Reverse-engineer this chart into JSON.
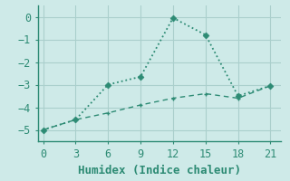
{
  "line1_x": [
    0,
    3,
    6,
    9,
    12,
    15,
    18,
    21
  ],
  "line1_y": [
    -5.0,
    -4.55,
    -3.0,
    -2.65,
    -0.05,
    -0.8,
    -3.5,
    -3.05
  ],
  "line2_x": [
    0,
    3,
    6,
    9,
    12,
    15,
    18,
    21
  ],
  "line2_y": [
    -5.0,
    -4.55,
    -4.25,
    -3.9,
    -3.6,
    -3.4,
    -3.6,
    -3.05
  ],
  "line_color": "#2d8b74",
  "bg_color": "#ceeae8",
  "grid_color": "#aacfcc",
  "xlabel": "Humidex (Indice chaleur)",
  "xticks": [
    0,
    3,
    6,
    9,
    12,
    15,
    18,
    21
  ],
  "yticks": [
    0,
    -1,
    -2,
    -3,
    -4,
    -5
  ],
  "xlim": [
    -0.5,
    22
  ],
  "ylim": [
    -5.5,
    0.5
  ],
  "tick_fontsize": 8.5,
  "xlabel_fontsize": 9
}
